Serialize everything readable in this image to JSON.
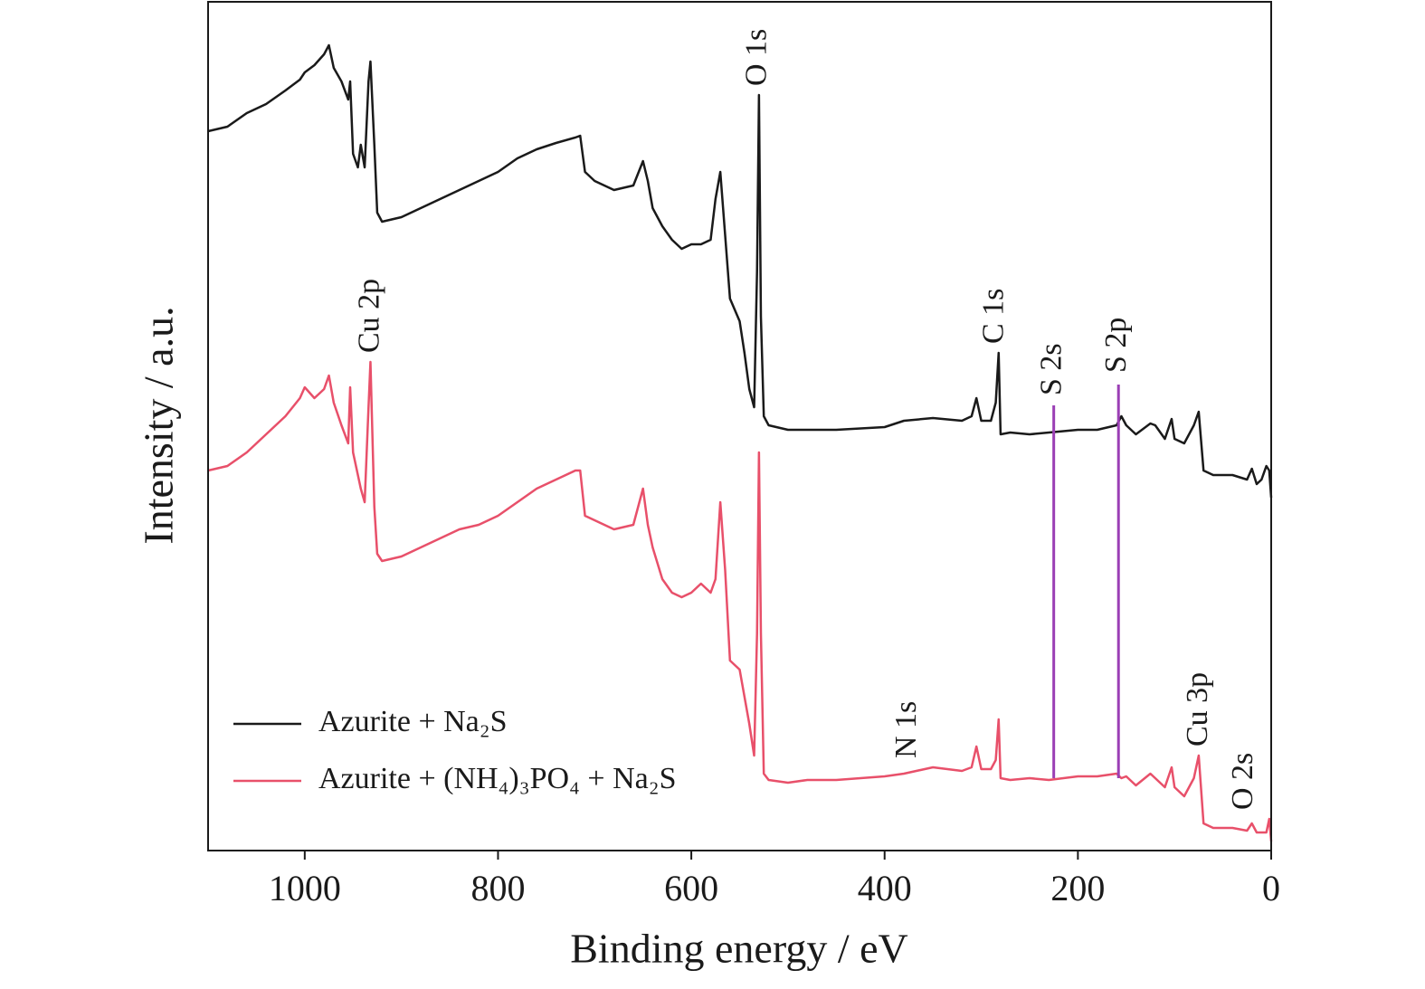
{
  "chart_data": {
    "type": "line",
    "xlabel": "Binding energy / eV",
    "ylabel": "Intensity / a.u.",
    "xlim": [
      1100,
      0
    ],
    "ylim": [
      0,
      938
    ],
    "xticks": [
      1000,
      800,
      600,
      400,
      200,
      0
    ],
    "legend": "lower left",
    "x": [
      1100,
      1080,
      1060,
      1040,
      1020,
      1005,
      1000,
      990,
      980,
      975,
      970,
      962,
      955,
      953,
      950,
      945,
      942,
      938,
      934,
      932,
      928,
      925,
      920,
      900,
      880,
      860,
      840,
      820,
      800,
      780,
      760,
      740,
      720,
      715,
      710,
      700,
      680,
      660,
      650,
      645,
      640,
      630,
      620,
      610,
      600,
      590,
      580,
      575,
      570,
      565,
      560,
      550,
      545,
      540,
      535,
      532,
      530,
      528,
      525,
      520,
      500,
      480,
      450,
      400,
      380,
      350,
      320,
      310,
      305,
      300,
      290,
      285,
      282,
      280,
      270,
      250,
      230,
      200,
      180,
      160,
      155,
      150,
      140,
      125,
      120,
      110,
      103,
      100,
      90,
      80,
      75,
      70,
      60,
      40,
      25,
      20,
      15,
      10,
      5,
      2,
      0
    ],
    "series": [
      {
        "name": "Azurite + Na₂S",
        "color": "#1a1a1a",
        "values": [
          795,
          800,
          815,
          825,
          840,
          852,
          860,
          868,
          880,
          890,
          865,
          850,
          830,
          850,
          770,
          755,
          780,
          755,
          850,
          872,
          780,
          705,
          695,
          700,
          710,
          720,
          730,
          740,
          750,
          765,
          775,
          782,
          788,
          790,
          750,
          740,
          730,
          735,
          762,
          740,
          710,
          690,
          675,
          665,
          670,
          670,
          675,
          720,
          750,
          680,
          610,
          585,
          550,
          510,
          490,
          640,
          835,
          590,
          480,
          470,
          465,
          465,
          465,
          468,
          475,
          478,
          475,
          480,
          500,
          475,
          475,
          495,
          550,
          460,
          462,
          460,
          462,
          465,
          465,
          470,
          480,
          470,
          460,
          472,
          470,
          455,
          477,
          455,
          450,
          470,
          485,
          420,
          415,
          415,
          410,
          422,
          405,
          410,
          425,
          420,
          390
        ]
      },
      {
        "name": "Azurite + (NH₄)₃PO₄ + Na₂S",
        "color": "#e8506a",
        "values": [
          420,
          425,
          440,
          460,
          480,
          500,
          512,
          500,
          510,
          525,
          495,
          470,
          450,
          512,
          440,
          415,
          400,
          385,
          490,
          540,
          380,
          328,
          320,
          325,
          335,
          345,
          355,
          360,
          370,
          385,
          400,
          410,
          420,
          420,
          370,
          365,
          355,
          360,
          400,
          360,
          335,
          300,
          285,
          280,
          285,
          295,
          285,
          300,
          385,
          310,
          210,
          200,
          170,
          140,
          105,
          240,
          440,
          240,
          85,
          78,
          75,
          78,
          78,
          82,
          85,
          92,
          88,
          92,
          115,
          90,
          90,
          100,
          145,
          80,
          78,
          80,
          78,
          82,
          82,
          85,
          80,
          82,
          72,
          85,
          80,
          70,
          92,
          70,
          60,
          80,
          105,
          30,
          25,
          25,
          22,
          30,
          20,
          20,
          20,
          35,
          10
        ]
      }
    ],
    "annotations": [
      {
        "text": "O 1s",
        "x": 530,
        "y": 845
      },
      {
        "text": "Cu 2p",
        "x": 931,
        "y": 550
      },
      {
        "text": "C 1s",
        "x": 285,
        "y": 560
      },
      {
        "text": "S 2s",
        "x": 225,
        "y": 503,
        "line": [
          80,
          492
        ],
        "color": "#9b3fb5"
      },
      {
        "text": "S 2p",
        "x": 158,
        "y": 528,
        "line": [
          80,
          515
        ],
        "color": "#9b3fb5"
      },
      {
        "text": "N 1s",
        "x": 375,
        "y": 102
      },
      {
        "text": "Cu 3p",
        "x": 74,
        "y": 115
      },
      {
        "text": "O 2s",
        "x": 27,
        "y": 45
      }
    ]
  }
}
